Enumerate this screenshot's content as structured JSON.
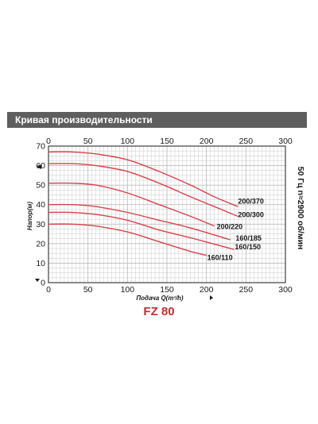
{
  "header": {
    "title": "Кривая производительности"
  },
  "model": "FZ 80",
  "chart_data": {
    "type": "line",
    "x_ticks": [
      "0",
      "50",
      "100",
      "150",
      "200",
      "250",
      "300"
    ],
    "y_ticks": [
      "0",
      "10",
      "20",
      "30",
      "40",
      "50",
      "60",
      "70"
    ],
    "xlim": [
      0,
      300
    ],
    "ylim": [
      0,
      70
    ],
    "xlabel": "Подача Q(m³/h)",
    "ylabel": "Напор(м)",
    "right_label": "50 Гц n≈2900 об/мин",
    "grid": true,
    "series": [
      {
        "name": "200/370",
        "x": [
          0,
          30,
          60,
          100,
          140,
          180,
          210,
          240
        ],
        "y": [
          67,
          67,
          66,
          63,
          57,
          50,
          44,
          39
        ],
        "label_at": [
          240,
          40.5
        ]
      },
      {
        "name": "200/300",
        "x": [
          0,
          30,
          60,
          100,
          140,
          180,
          210,
          240
        ],
        "y": [
          61,
          61,
          60,
          57,
          51,
          44,
          39,
          34
        ],
        "label_at": [
          240,
          33.5
        ]
      },
      {
        "name": "200/220",
        "x": [
          0,
          30,
          60,
          100,
          140,
          180,
          210
        ],
        "y": [
          51,
          51,
          50,
          46,
          40,
          34,
          29
        ],
        "label_at": [
          213,
          27.5
        ]
      },
      {
        "name": "160/185",
        "x": [
          0,
          30,
          60,
          100,
          140,
          180,
          230
        ],
        "y": [
          40,
          40,
          39,
          36,
          32,
          28,
          22
        ],
        "label_at": [
          237,
          21.5
        ]
      },
      {
        "name": "160/150",
        "x": [
          0,
          30,
          60,
          100,
          140,
          180,
          235
        ],
        "y": [
          36,
          36,
          35,
          32,
          27,
          23,
          17
        ],
        "label_at": [
          236,
          17
        ]
      },
      {
        "name": "160/110",
        "x": [
          0,
          30,
          60,
          100,
          140,
          180,
          200
        ],
        "y": [
          30,
          30,
          29,
          26,
          21,
          16,
          14
        ],
        "label_at": [
          201,
          11.5
        ]
      }
    ],
    "colors": {
      "curve": "#d9424a",
      "grid": "#bdbdbd",
      "axis": "#1a1a1a"
    }
  }
}
